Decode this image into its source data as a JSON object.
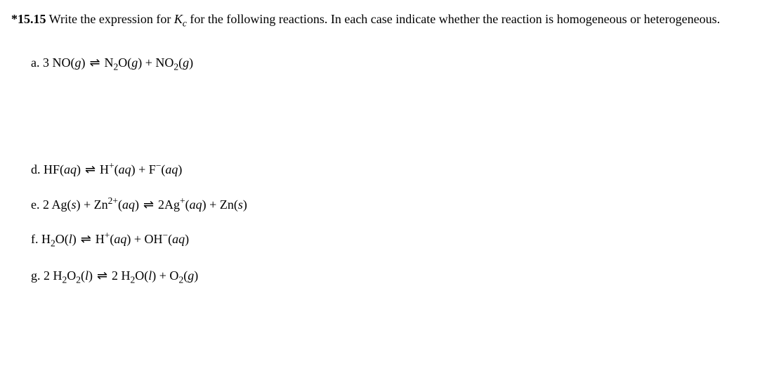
{
  "problem": {
    "number": "*15.15",
    "intro_part1": " Write the expression for ",
    "kc_base": "K",
    "kc_sub": "c",
    "intro_part2": " for the following reactions. In each case indicate whether the reaction is homogeneous or heterogeneous."
  },
  "reactions": {
    "a": {
      "label": "a.  ",
      "lhs_coef1": "3",
      "lhs_sp1": "NO(",
      "lhs_ph1": "g",
      "lhs_cl1": ")",
      "rhs_sp1": "N",
      "rhs_sub1": "2",
      "rhs_sp1b": "O(",
      "rhs_ph1": "g",
      "rhs_cl1": ") + NO",
      "rhs_sub2": "2",
      "rhs_sp2b": "(",
      "rhs_ph2": "g",
      "rhs_cl2": ")"
    },
    "d": {
      "label": "d.  ",
      "lhs": "HF(",
      "lhs_ph": "aq",
      "lhs_cl": ")",
      "rhs_sp1": "H",
      "rhs_sup1": "+",
      "rhs_sp1b": "(",
      "rhs_ph1": "aq",
      "rhs_cl1": ") + F",
      "rhs_sup2": "−",
      "rhs_sp2b": "(",
      "rhs_ph2": "aq",
      "rhs_cl2": ")"
    },
    "e": {
      "label": "e.  ",
      "lhs_coef1": "2",
      "lhs_sp1": "Ag(",
      "lhs_ph1": "s",
      "lhs_cl1": ") + Zn",
      "lhs_sup1": "2+",
      "lhs_sp1b": "(",
      "lhs_ph2": "aq",
      "lhs_cl2": ")",
      "rhs_coef1": "2",
      "rhs_sp1": "Ag",
      "rhs_sup1": "+",
      "rhs_sp1b": "(",
      "rhs_ph1": "aq",
      "rhs_cl1": ") + Zn(",
      "rhs_ph2": "s",
      "rhs_cl2": ")"
    },
    "f": {
      "label": "f.  ",
      "lhs_sp1": "H",
      "lhs_sub1": "2",
      "lhs_sp1b": "O(",
      "lhs_ph1": "l",
      "lhs_cl1": ")",
      "rhs_sp1": "H",
      "rhs_sup1": "+",
      "rhs_sp1b": "(",
      "rhs_ph1": "aq",
      "rhs_cl1": ") + OH",
      "rhs_sup2": "−",
      "rhs_sp2b": "(",
      "rhs_ph2": "aq",
      "rhs_cl2": ")"
    },
    "g": {
      "label": "g.  ",
      "lhs_coef1": "2",
      "lhs_sp1": "H",
      "lhs_sub1": "2",
      "lhs_sp1b": "O",
      "lhs_sub2": "2",
      "lhs_sp1c": "(",
      "lhs_ph1": "l",
      "lhs_cl1": ")",
      "rhs_coef1": "2",
      "rhs_sp1": "H",
      "rhs_sub1": "2",
      "rhs_sp1b": "O(",
      "rhs_ph1": "l",
      "rhs_cl1": ") + O",
      "rhs_sub2": "2",
      "rhs_sp2b": "(",
      "rhs_ph2": "g",
      "rhs_cl2": ")"
    }
  }
}
